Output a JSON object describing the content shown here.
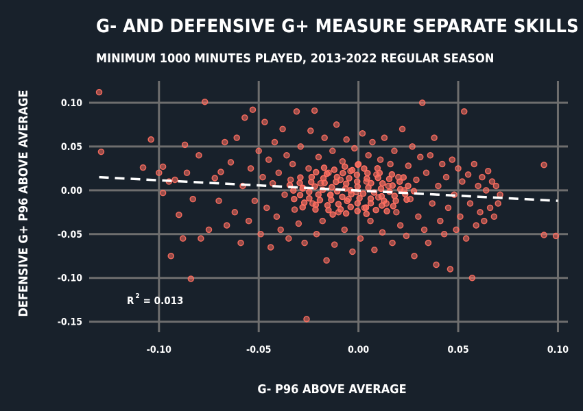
{
  "chart_data": {
    "type": "scatter",
    "title": "G- AND DEFENSIVE G+ MEASURE SEPARATE SKILLS",
    "subtitle": "MINIMUM 1000 MINUTES PLAYED, 2013-2022 REGULAR SEASON",
    "xlabel": "G- P96 ABOVE AVERAGE",
    "ylabel": "DEFENSIVE G+ P96 ABOVE AVERAGE",
    "xlim": [
      -0.135,
      0.105
    ],
    "ylim": [
      -0.162,
      0.125
    ],
    "x_ticks": [
      -0.1,
      -0.05,
      0.0,
      0.05,
      0.1
    ],
    "x_tick_labels": [
      "-0.10",
      "-0.05",
      "0.00",
      "0.05",
      "0.10"
    ],
    "y_ticks": [
      0.1,
      0.05,
      0.0,
      -0.05,
      -0.1,
      -0.15
    ],
    "y_tick_labels": [
      "0.10",
      "0.05",
      "0.00",
      "-0.05",
      "-0.10",
      "-0.15"
    ],
    "grid": true,
    "trend_line": {
      "x": [
        -0.13,
        0.1
      ],
      "y": [
        0.015,
        -0.012
      ]
    },
    "annotation": {
      "prefix": "R",
      "superscript": "2",
      "suffix": "= 0.013"
    },
    "colors": {
      "background": "#18212b",
      "grid": "#6e6e6e",
      "point": "#ff6f61",
      "trend": "#ffffff",
      "text": "#ffffff"
    },
    "series": [
      {
        "points": [
          [
            -0.13,
            0.112
          ],
          [
            -0.129,
            0.044
          ],
          [
            -0.098,
            0.027
          ],
          [
            -0.098,
            -0.003
          ],
          [
            -0.094,
            -0.075
          ],
          [
            -0.092,
            0.012
          ],
          [
            -0.087,
            0.052
          ],
          [
            -0.084,
            -0.101
          ],
          [
            -0.08,
            0.04
          ],
          [
            -0.077,
            0.101
          ],
          [
            -0.075,
            -0.045
          ],
          [
            -0.072,
            0.014
          ],
          [
            -0.07,
            -0.012
          ],
          [
            -0.069,
            0.021
          ],
          [
            -0.067,
            0.055
          ],
          [
            -0.066,
            -0.04
          ],
          [
            -0.064,
            0.032
          ],
          [
            -0.062,
            -0.025
          ],
          [
            -0.061,
            0.06
          ],
          [
            -0.059,
            -0.06
          ],
          [
            -0.058,
            0.005
          ],
          [
            -0.057,
            0.083
          ],
          [
            -0.055,
            -0.035
          ],
          [
            -0.054,
            0.025
          ],
          [
            -0.053,
            0.092
          ],
          [
            -0.052,
            -0.012
          ],
          [
            -0.05,
            0.045
          ],
          [
            -0.049,
            -0.05
          ],
          [
            -0.048,
            0.015
          ],
          [
            -0.047,
            0.078
          ],
          [
            -0.046,
            -0.02
          ],
          [
            -0.045,
            0.035
          ],
          [
            -0.044,
            -0.065
          ],
          [
            -0.043,
            0.008
          ],
          [
            -0.042,
            0.055
          ],
          [
            -0.041,
            -0.03
          ],
          [
            -0.04,
            0.02
          ],
          [
            -0.039,
            -0.045
          ],
          [
            -0.038,
            0.07
          ],
          [
            -0.037,
            -0.005
          ],
          [
            -0.036,
            0.04
          ],
          [
            -0.035,
            -0.055
          ],
          [
            -0.034,
            0.012
          ],
          [
            -0.033,
            0.03
          ],
          [
            -0.032,
            -0.022
          ],
          [
            -0.031,
            0.09
          ],
          [
            -0.03,
            -0.038
          ],
          [
            -0.029,
            0.05
          ],
          [
            -0.028,
            0.002
          ],
          [
            -0.027,
            -0.06
          ],
          [
            -0.026,
            -0.147
          ],
          [
            -0.025,
            0.025
          ],
          [
            -0.024,
            0.068
          ],
          [
            -0.023,
            -0.015
          ],
          [
            -0.022,
            0.091
          ],
          [
            -0.021,
            -0.05
          ],
          [
            -0.02,
            0.038
          ],
          [
            -0.019,
            0.008
          ],
          [
            -0.018,
            -0.035
          ],
          [
            -0.017,
            0.06
          ],
          [
            -0.016,
            -0.08
          ],
          [
            -0.015,
            0.02
          ],
          [
            -0.014,
            -0.005
          ],
          [
            -0.013,
            0.045
          ],
          [
            -0.012,
            -0.062
          ],
          [
            -0.011,
            0.075
          ],
          [
            -0.01,
            -0.025
          ],
          [
            -0.009,
            0.012
          ],
          [
            -0.008,
            0.033
          ],
          [
            -0.007,
            -0.045
          ],
          [
            -0.006,
            0.058
          ],
          [
            -0.005,
            -0.01
          ],
          [
            -0.004,
            0.022
          ],
          [
            -0.003,
            -0.07
          ],
          [
            -0.002,
            0.048
          ],
          [
            -0.001,
            -0.002
          ],
          [
            0.0,
            0.03
          ],
          [
            0.001,
            -0.055
          ],
          [
            0.002,
            0.065
          ],
          [
            0.003,
            -0.02
          ],
          [
            0.004,
            0.01
          ],
          [
            0.005,
            0.04
          ],
          [
            0.006,
            -0.035
          ],
          [
            0.007,
            0.055
          ],
          [
            0.008,
            -0.068
          ],
          [
            0.009,
            0.018
          ],
          [
            0.01,
            -0.008
          ],
          [
            0.011,
            0.035
          ],
          [
            0.012,
            -0.048
          ],
          [
            0.013,
            0.06
          ],
          [
            0.014,
            -0.015
          ],
          [
            0.015,
            0.005
          ],
          [
            0.016,
            0.03
          ],
          [
            0.017,
            -0.06
          ],
          [
            0.018,
            0.045
          ],
          [
            0.019,
            -0.025
          ],
          [
            0.02,
            0.015
          ],
          [
            0.021,
            -0.04
          ],
          [
            0.022,
            0.07
          ],
          [
            0.023,
            0.0
          ],
          [
            0.024,
            -0.052
          ],
          [
            0.025,
            0.028
          ],
          [
            0.026,
            -0.01
          ],
          [
            0.027,
            0.05
          ],
          [
            0.028,
            -0.075
          ],
          [
            0.029,
            0.012
          ],
          [
            0.03,
            -0.03
          ],
          [
            0.031,
            0.038
          ],
          [
            0.032,
            0.1
          ],
          [
            0.033,
            -0.045
          ],
          [
            0.034,
            0.02
          ],
          [
            0.035,
            -0.06
          ],
          [
            0.036,
            0.04
          ],
          [
            0.037,
            -0.015
          ],
          [
            0.038,
            0.06
          ],
          [
            0.039,
            -0.085
          ],
          [
            0.04,
            0.005
          ],
          [
            0.041,
            -0.035
          ],
          [
            0.042,
            0.03
          ],
          [
            0.043,
            -0.05
          ],
          [
            0.044,
            0.015
          ],
          [
            0.045,
            -0.02
          ],
          [
            0.046,
            -0.09
          ],
          [
            0.047,
            0.035
          ],
          [
            0.048,
            -0.005
          ],
          [
            0.049,
            -0.045
          ],
          [
            0.05,
            0.025
          ],
          [
            0.051,
            -0.03
          ],
          [
            0.052,
            0.01
          ],
          [
            0.053,
            0.09
          ],
          [
            0.054,
            -0.055
          ],
          [
            0.055,
            0.018
          ],
          [
            0.056,
            -0.015
          ],
          [
            0.057,
            -0.1
          ],
          [
            0.058,
            0.03
          ],
          [
            0.059,
            -0.04
          ],
          [
            0.06,
            0.005
          ],
          [
            0.061,
            -0.025
          ],
          [
            0.062,
            0.015
          ],
          [
            0.063,
            -0.035
          ],
          [
            0.064,
            0.0
          ],
          [
            0.065,
            0.022
          ],
          [
            0.066,
            -0.02
          ],
          [
            0.067,
            0.01
          ],
          [
            0.068,
            -0.03
          ],
          [
            0.069,
            0.005
          ],
          [
            0.07,
            -0.015
          ],
          [
            0.071,
            -0.005
          ],
          [
            0.093,
            0.029
          ],
          [
            0.093,
            -0.051
          ],
          [
            0.099,
            -0.052
          ],
          [
            -0.09,
            -0.028
          ],
          [
            -0.088,
            -0.055
          ],
          [
            -0.083,
            -0.01
          ],
          [
            -0.079,
            -0.055
          ],
          [
            -0.104,
            0.058
          ],
          [
            -0.108,
            0.026
          ],
          [
            -0.1,
            0.02
          ],
          [
            -0.095,
            0.01
          ],
          [
            -0.086,
            0.02
          ]
        ]
      }
    ]
  }
}
